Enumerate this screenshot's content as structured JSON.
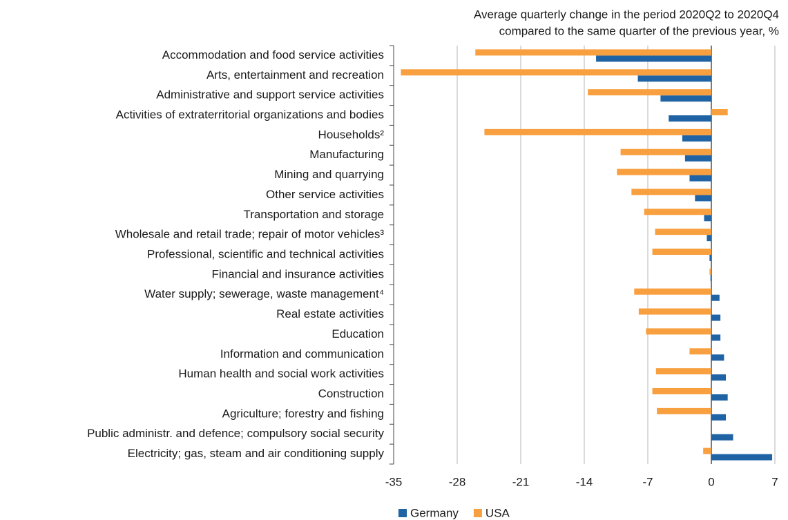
{
  "chart_data": {
    "type": "hbar",
    "title": "Average quarterly change in the period 2020Q2 to 2020Q4",
    "subtitle": "compared to the same quarter of the previous year, %",
    "categories": [
      "Accommodation and food service activities",
      "Arts, entertainment and recreation",
      "Administrative and support service activities",
      "Activities of extraterritorial organizations and bodies",
      "Households²",
      "Manufacturing",
      "Mining and quarrying",
      "Other service activities",
      "Transportation and storage",
      "Wholesale and retail trade; repair of motor vehicles³",
      "Professional, scientific and technical activities",
      "Financial and insurance activities",
      "Water supply; sewerage, waste management⁴",
      "Real estate activities",
      "Education",
      "Information and communication",
      "Human health and social work activities",
      "Construction",
      "Agriculture; forestry and fishing",
      "Public administr. and defence; compulsory social security",
      "Electricity; gas, steam and air conditioning supply"
    ],
    "series": [
      {
        "name": "Germany",
        "color": "#1f63a5",
        "values": [
          -12.7,
          -8.1,
          -5.6,
          -4.7,
          -3.2,
          -2.9,
          -2.4,
          -1.8,
          -0.8,
          -0.5,
          -0.2,
          -0.1,
          0.9,
          1.0,
          1.0,
          1.4,
          1.6,
          1.8,
          1.6,
          2.4,
          6.7
        ]
      },
      {
        "name": "USA",
        "color": "#f8a03f",
        "values": [
          -26.0,
          -34.2,
          -13.6,
          1.8,
          -25.0,
          -10.0,
          -10.4,
          -8.8,
          -7.4,
          -6.2,
          -6.5,
          -0.2,
          -8.5,
          -8.0,
          -7.2,
          -2.4,
          -6.1,
          -6.5,
          -6.0,
          null,
          -0.9
        ]
      }
    ],
    "xlim": [
      -35,
      7
    ],
    "xticks": [
      -35,
      -28,
      -21,
      -14,
      -7,
      0,
      7
    ],
    "grid": true,
    "legend": "bottom"
  }
}
